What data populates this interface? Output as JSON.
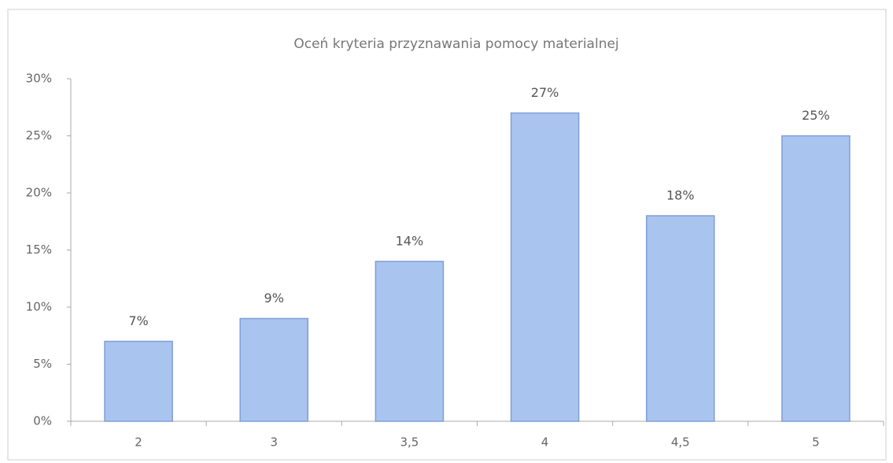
{
  "chart_data": {
    "type": "bar",
    "title": "Oceń kryteria przyznawania pomocy materialnej",
    "categories": [
      "2",
      "3",
      "3,5",
      "4",
      "4,5",
      "5"
    ],
    "values": [
      7,
      9,
      14,
      27,
      18,
      25
    ],
    "value_labels": [
      "7%",
      "9%",
      "14%",
      "27%",
      "18%",
      "25%"
    ],
    "color": "#a9c4ef",
    "ylim": [
      0,
      30
    ],
    "yticks": [
      {
        "value": 0,
        "label": "0%"
      },
      {
        "value": 5,
        "label": "5%"
      },
      {
        "value": 10,
        "label": "10%"
      },
      {
        "value": 15,
        "label": "15%"
      },
      {
        "value": 20,
        "label": "20%"
      },
      {
        "value": 25,
        "label": "25%"
      },
      {
        "value": 30,
        "label": "30%"
      }
    ],
    "grid": false
  }
}
